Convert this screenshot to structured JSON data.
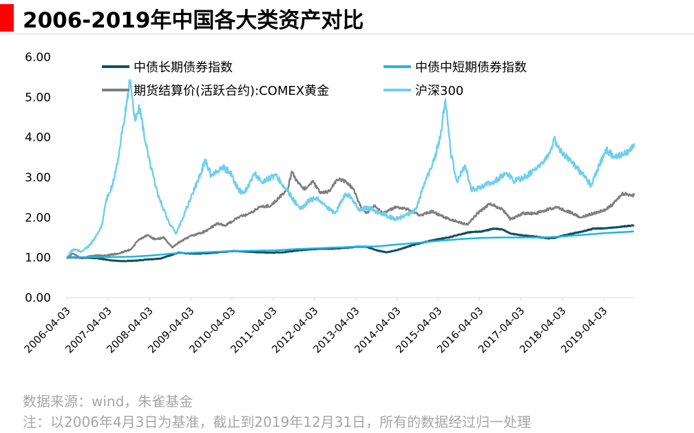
{
  "title": "2006-2019年中国各大类资产对比",
  "source_text": "数据来源：wind，朱雀基金",
  "note_text": "注：以2006年4月3日为基准，截止到2019年12月31日，所有的数据经过归一处理",
  "colors": {
    "accent": "#ff0000",
    "long_bond": "#10505e",
    "short_bond": "#1fb4e8",
    "gold": "#7f7f7f",
    "csi300": "#6fcfee"
  },
  "chart_data": {
    "type": "line",
    "title": "",
    "xlabel": "",
    "ylabel": "",
    "ylim": [
      0,
      6
    ],
    "yticks": [
      "0.00",
      "1.00",
      "2.00",
      "3.00",
      "4.00",
      "5.00",
      "6.00"
    ],
    "xticks": [
      "2006-04-03",
      "2007-04-03",
      "2008-04-03",
      "2009-04-03",
      "2010-04-03",
      "2011-04-03",
      "2012-04-03",
      "2013-04-03",
      "2014-04-03",
      "2015-04-03",
      "2016-04-03",
      "2017-04-03",
      "2018-04-03",
      "2019-04-03"
    ],
    "xlim": [
      2006.25,
      2019.99
    ],
    "grid": false,
    "legend_position": "top",
    "series": [
      {
        "name": "中债长期债券指数",
        "color": "#10505e",
        "points": [
          [
            2006.25,
            1.0
          ],
          [
            2006.6,
            1.0
          ],
          [
            2007.0,
            0.98
          ],
          [
            2007.3,
            0.93
          ],
          [
            2007.6,
            0.91
          ],
          [
            2007.9,
            0.92
          ],
          [
            2008.2,
            0.95
          ],
          [
            2008.5,
            0.97
          ],
          [
            2008.75,
            1.05
          ],
          [
            2008.95,
            1.12
          ],
          [
            2009.2,
            1.1
          ],
          [
            2009.5,
            1.1
          ],
          [
            2009.8,
            1.12
          ],
          [
            2010.0,
            1.14
          ],
          [
            2010.3,
            1.16
          ],
          [
            2010.6,
            1.15
          ],
          [
            2010.9,
            1.13
          ],
          [
            2011.2,
            1.12
          ],
          [
            2011.5,
            1.13
          ],
          [
            2011.8,
            1.17
          ],
          [
            2012.1,
            1.2
          ],
          [
            2012.4,
            1.22
          ],
          [
            2012.7,
            1.22
          ],
          [
            2013.0,
            1.24
          ],
          [
            2013.3,
            1.27
          ],
          [
            2013.5,
            1.27
          ],
          [
            2013.75,
            1.18
          ],
          [
            2014.0,
            1.13
          ],
          [
            2014.3,
            1.2
          ],
          [
            2014.6,
            1.3
          ],
          [
            2014.9,
            1.38
          ],
          [
            2015.2,
            1.45
          ],
          [
            2015.5,
            1.5
          ],
          [
            2015.8,
            1.58
          ],
          [
            2016.0,
            1.63
          ],
          [
            2016.3,
            1.65
          ],
          [
            2016.6,
            1.72
          ],
          [
            2016.8,
            1.7
          ],
          [
            2017.0,
            1.6
          ],
          [
            2017.3,
            1.55
          ],
          [
            2017.6,
            1.52
          ],
          [
            2017.9,
            1.48
          ],
          [
            2018.1,
            1.5
          ],
          [
            2018.4,
            1.58
          ],
          [
            2018.7,
            1.64
          ],
          [
            2019.0,
            1.72
          ],
          [
            2019.3,
            1.73
          ],
          [
            2019.6,
            1.76
          ],
          [
            2019.99,
            1.8
          ]
        ]
      },
      {
        "name": "中债中短期债券指数",
        "color": "#1fb4e8",
        "points": [
          [
            2006.25,
            1.0
          ],
          [
            2006.8,
            1.01
          ],
          [
            2007.3,
            1.01
          ],
          [
            2007.8,
            1.02
          ],
          [
            2008.3,
            1.05
          ],
          [
            2008.8,
            1.1
          ],
          [
            2009.3,
            1.12
          ],
          [
            2009.8,
            1.14
          ],
          [
            2010.3,
            1.16
          ],
          [
            2010.8,
            1.17
          ],
          [
            2011.3,
            1.18
          ],
          [
            2011.8,
            1.21
          ],
          [
            2012.3,
            1.23
          ],
          [
            2012.8,
            1.25
          ],
          [
            2013.3,
            1.27
          ],
          [
            2013.8,
            1.28
          ],
          [
            2014.3,
            1.33
          ],
          [
            2014.8,
            1.37
          ],
          [
            2015.3,
            1.42
          ],
          [
            2015.8,
            1.46
          ],
          [
            2016.3,
            1.49
          ],
          [
            2016.8,
            1.5
          ],
          [
            2017.3,
            1.5
          ],
          [
            2017.8,
            1.5
          ],
          [
            2018.3,
            1.53
          ],
          [
            2018.8,
            1.57
          ],
          [
            2019.3,
            1.61
          ],
          [
            2019.99,
            1.65
          ]
        ]
      },
      {
        "name": "期货结算价(活跃合约):COMEX黄金",
        "color": "#7f7f7f",
        "points": [
          [
            2006.25,
            1.0
          ],
          [
            2006.4,
            1.1
          ],
          [
            2006.6,
            0.98
          ],
          [
            2006.9,
            1.05
          ],
          [
            2007.2,
            1.05
          ],
          [
            2007.5,
            1.1
          ],
          [
            2007.8,
            1.2
          ],
          [
            2008.0,
            1.45
          ],
          [
            2008.2,
            1.55
          ],
          [
            2008.4,
            1.45
          ],
          [
            2008.6,
            1.5
          ],
          [
            2008.8,
            1.25
          ],
          [
            2009.0,
            1.4
          ],
          [
            2009.3,
            1.55
          ],
          [
            2009.6,
            1.65
          ],
          [
            2009.9,
            1.85
          ],
          [
            2010.1,
            1.8
          ],
          [
            2010.4,
            2.0
          ],
          [
            2010.7,
            2.1
          ],
          [
            2010.9,
            2.25
          ],
          [
            2011.2,
            2.3
          ],
          [
            2011.4,
            2.5
          ],
          [
            2011.6,
            2.7
          ],
          [
            2011.7,
            3.15
          ],
          [
            2011.85,
            2.85
          ],
          [
            2012.0,
            2.7
          ],
          [
            2012.2,
            2.9
          ],
          [
            2012.4,
            2.6
          ],
          [
            2012.6,
            2.65
          ],
          [
            2012.8,
            2.95
          ],
          [
            2013.0,
            2.9
          ],
          [
            2013.2,
            2.7
          ],
          [
            2013.35,
            2.3
          ],
          [
            2013.5,
            2.1
          ],
          [
            2013.7,
            2.3
          ],
          [
            2013.9,
            2.1
          ],
          [
            2014.2,
            2.25
          ],
          [
            2014.5,
            2.2
          ],
          [
            2014.8,
            2.05
          ],
          [
            2015.1,
            2.15
          ],
          [
            2015.4,
            2.0
          ],
          [
            2015.7,
            1.9
          ],
          [
            2015.95,
            1.82
          ],
          [
            2016.2,
            2.1
          ],
          [
            2016.5,
            2.35
          ],
          [
            2016.8,
            2.2
          ],
          [
            2017.0,
            1.95
          ],
          [
            2017.3,
            2.1
          ],
          [
            2017.6,
            2.1
          ],
          [
            2017.9,
            2.2
          ],
          [
            2018.1,
            2.25
          ],
          [
            2018.4,
            2.15
          ],
          [
            2018.7,
            2.0
          ],
          [
            2019.0,
            2.1
          ],
          [
            2019.3,
            2.2
          ],
          [
            2019.5,
            2.35
          ],
          [
            2019.7,
            2.6
          ],
          [
            2019.99,
            2.55
          ]
        ]
      },
      {
        "name": "沪深300",
        "color": "#6fcfee",
        "points": [
          [
            2006.25,
            1.0
          ],
          [
            2006.4,
            1.2
          ],
          [
            2006.6,
            1.15
          ],
          [
            2006.8,
            1.3
          ],
          [
            2006.95,
            1.5
          ],
          [
            2007.1,
            1.8
          ],
          [
            2007.2,
            2.4
          ],
          [
            2007.35,
            2.8
          ],
          [
            2007.5,
            3.5
          ],
          [
            2007.65,
            4.5
          ],
          [
            2007.78,
            5.4
          ],
          [
            2007.9,
            4.4
          ],
          [
            2008.0,
            4.8
          ],
          [
            2008.15,
            3.9
          ],
          [
            2008.3,
            3.2
          ],
          [
            2008.45,
            2.6
          ],
          [
            2008.6,
            2.2
          ],
          [
            2008.75,
            1.8
          ],
          [
            2008.9,
            1.6
          ],
          [
            2009.1,
            2.1
          ],
          [
            2009.3,
            2.6
          ],
          [
            2009.5,
            3.1
          ],
          [
            2009.6,
            3.45
          ],
          [
            2009.75,
            3.05
          ],
          [
            2010.0,
            3.25
          ],
          [
            2010.2,
            3.15
          ],
          [
            2010.4,
            2.7
          ],
          [
            2010.55,
            2.6
          ],
          [
            2010.8,
            3.1
          ],
          [
            2010.95,
            2.9
          ],
          [
            2011.1,
            2.95
          ],
          [
            2011.3,
            3.05
          ],
          [
            2011.5,
            2.8
          ],
          [
            2011.7,
            2.5
          ],
          [
            2011.9,
            2.2
          ],
          [
            2012.1,
            2.4
          ],
          [
            2012.3,
            2.5
          ],
          [
            2012.5,
            2.3
          ],
          [
            2012.75,
            2.1
          ],
          [
            2013.0,
            2.6
          ],
          [
            2013.15,
            2.5
          ],
          [
            2013.35,
            2.15
          ],
          [
            2013.5,
            2.25
          ],
          [
            2013.75,
            2.15
          ],
          [
            2014.0,
            2.05
          ],
          [
            2014.2,
            1.95
          ],
          [
            2014.45,
            2.05
          ],
          [
            2014.7,
            2.2
          ],
          [
            2014.9,
            2.8
          ],
          [
            2015.1,
            3.3
          ],
          [
            2015.3,
            4.0
          ],
          [
            2015.42,
            4.95
          ],
          [
            2015.55,
            3.6
          ],
          [
            2015.7,
            2.9
          ],
          [
            2015.9,
            3.3
          ],
          [
            2016.05,
            2.7
          ],
          [
            2016.3,
            2.75
          ],
          [
            2016.6,
            2.9
          ],
          [
            2016.9,
            3.1
          ],
          [
            2017.1,
            2.9
          ],
          [
            2017.4,
            3.05
          ],
          [
            2017.7,
            3.25
          ],
          [
            2017.95,
            3.6
          ],
          [
            2018.05,
            3.95
          ],
          [
            2018.25,
            3.6
          ],
          [
            2018.5,
            3.35
          ],
          [
            2018.8,
            3.0
          ],
          [
            2018.95,
            2.8
          ],
          [
            2019.15,
            3.3
          ],
          [
            2019.3,
            3.7
          ],
          [
            2019.5,
            3.5
          ],
          [
            2019.75,
            3.6
          ],
          [
            2019.99,
            3.75
          ]
        ]
      }
    ]
  }
}
